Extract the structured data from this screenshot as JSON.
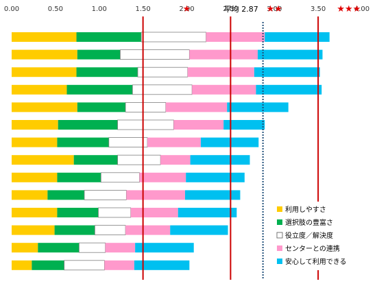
{
  "chart_data": {
    "type": "bar",
    "stacked": true,
    "orientation": "horizontal",
    "xlim": [
      0,
      4
    ],
    "x_ticks": [
      "0.00",
      "0.50",
      "1.00",
      "1.50",
      "2.00",
      "2.50",
      "3.00",
      "3.50",
      "4.00"
    ],
    "grid": false,
    "legend_position": "bottom-right",
    "series": [
      {
        "name": "利用しやすさ",
        "color": "#ffcc00",
        "values": [
          0.74,
          0.75,
          0.74,
          0.63,
          0.75,
          0.53,
          0.52,
          0.71,
          0.52,
          0.41,
          0.52,
          0.49,
          0.3,
          0.23
        ]
      },
      {
        "name": "選択肢の豊富さ",
        "color": "#00b050",
        "values": [
          0.74,
          0.49,
          0.7,
          0.75,
          0.55,
          0.68,
          0.59,
          0.5,
          0.5,
          0.42,
          0.47,
          0.46,
          0.47,
          0.37
        ]
      },
      {
        "name": "役立度／解決度",
        "color": "#ffffff",
        "values": [
          0.74,
          0.79,
          0.57,
          0.68,
          0.46,
          0.64,
          0.44,
          0.49,
          0.44,
          0.48,
          0.37,
          0.35,
          0.3,
          0.46
        ]
      },
      {
        "name": "センターとの連携",
        "color": "#ff99cc",
        "values": [
          0.67,
          0.78,
          0.76,
          0.73,
          0.7,
          0.57,
          0.61,
          0.34,
          0.53,
          0.67,
          0.54,
          0.51,
          0.34,
          0.34
        ]
      },
      {
        "name": "安心して利用できる",
        "color": "#00c0f0",
        "values": [
          0.74,
          0.74,
          0.75,
          0.75,
          0.7,
          0.47,
          0.66,
          0.68,
          0.67,
          0.63,
          0.67,
          0.66,
          0.67,
          0.63
        ]
      }
    ],
    "reference_lines": [
      {
        "value": 1.5,
        "color": "#cc0000",
        "style": "solid",
        "label": ""
      },
      {
        "value": 2.5,
        "color": "#cc0000",
        "style": "solid",
        "label": "★"
      },
      {
        "value": 2.87,
        "color": "#1f4e79",
        "style": "dotted",
        "label": "平均 2.87"
      },
      {
        "value": 3.5,
        "color": "#cc0000",
        "style": "solid",
        "label": "★★"
      },
      {
        "value": 4.0,
        "color": "#cc0000",
        "style": "none",
        "label": "★★★"
      }
    ]
  }
}
